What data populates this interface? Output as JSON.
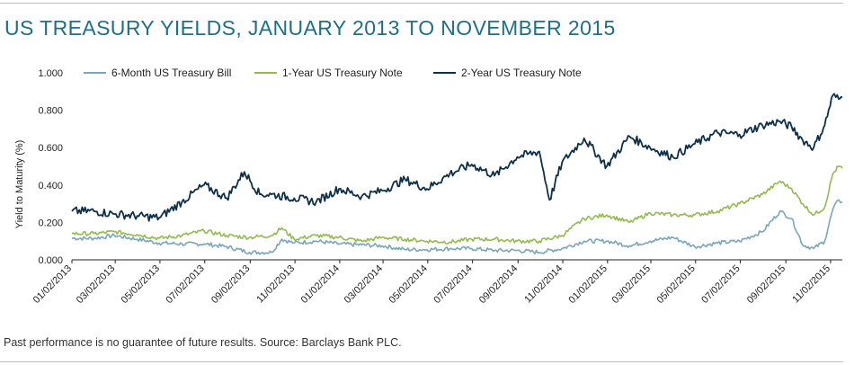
{
  "title": "US TREASURY YIELDS, JANUARY 2013 TO NOVEMBER 2015",
  "footnote": "Past performance is no guarantee of future results. Source: Barclays Bank PLC.",
  "chart_data": {
    "type": "line",
    "ylabel": "Yield to Maturity (%)",
    "xlabel": "",
    "ylim": [
      0,
      1.0
    ],
    "y_ticks": [
      "0.000",
      "0.200",
      "0.400",
      "0.600",
      "0.800",
      "1.000"
    ],
    "x_tick_labels": [
      "01/02/2013",
      "03/02/2013",
      "05/02/2013",
      "07/02/2013",
      "09/02/2013",
      "11/02/2013",
      "01/02/2014",
      "03/02/2014",
      "05/02/2014",
      "07/02/2014",
      "09/02/2014",
      "11/02/2014",
      "01/02/2015",
      "03/02/2015",
      "05/02/2015",
      "07/02/2015",
      "09/02/2015",
      "11/02/2015"
    ],
    "legend_position": "top",
    "grid": false,
    "series": [
      {
        "name": "6-Month US Treasury Bill",
        "color": "#7aa6b8",
        "points": [
          [
            "01/02/2013",
            0.115
          ],
          [
            "02/01/2013",
            0.115
          ],
          [
            "03/01/2013",
            0.13
          ],
          [
            "04/01/2013",
            0.11
          ],
          [
            "05/01/2013",
            0.09
          ],
          [
            "06/01/2013",
            0.085
          ],
          [
            "07/01/2013",
            0.085
          ],
          [
            "08/01/2013",
            0.07
          ],
          [
            "09/01/2013",
            0.04
          ],
          [
            "10/01/2013",
            0.04
          ],
          [
            "10/15/2013",
            0.11
          ],
          [
            "11/01/2013",
            0.09
          ],
          [
            "12/01/2013",
            0.1
          ],
          [
            "01/01/2014",
            0.085
          ],
          [
            "02/01/2014",
            0.08
          ],
          [
            "03/01/2014",
            0.075
          ],
          [
            "04/01/2014",
            0.055
          ],
          [
            "05/01/2014",
            0.055
          ],
          [
            "06/01/2014",
            0.06
          ],
          [
            "07/01/2014",
            0.06
          ],
          [
            "08/01/2014",
            0.05
          ],
          [
            "09/01/2014",
            0.05
          ],
          [
            "10/01/2014",
            0.04
          ],
          [
            "11/01/2014",
            0.06
          ],
          [
            "12/01/2014",
            0.1
          ],
          [
            "01/01/2015",
            0.1
          ],
          [
            "02/01/2015",
            0.075
          ],
          [
            "03/01/2015",
            0.1
          ],
          [
            "04/01/2015",
            0.12
          ],
          [
            "05/01/2015",
            0.07
          ],
          [
            "06/01/2015",
            0.09
          ],
          [
            "07/01/2015",
            0.1
          ],
          [
            "08/01/2015",
            0.15
          ],
          [
            "08/25/2015",
            0.26
          ],
          [
            "09/10/2015",
            0.22
          ],
          [
            "09/25/2015",
            0.08
          ],
          [
            "10/10/2015",
            0.06
          ],
          [
            "10/25/2015",
            0.1
          ],
          [
            "11/05/2015",
            0.27
          ],
          [
            "11/13/2015",
            0.32
          ],
          [
            "11/18/2015",
            0.31
          ]
        ]
      },
      {
        "name": "1-Year US Treasury Note",
        "color": "#93ba4f",
        "points": [
          [
            "01/02/2013",
            0.14
          ],
          [
            "02/01/2013",
            0.14
          ],
          [
            "03/01/2013",
            0.15
          ],
          [
            "04/01/2013",
            0.135
          ],
          [
            "05/01/2013",
            0.115
          ],
          [
            "06/01/2013",
            0.13
          ],
          [
            "07/01/2013",
            0.155
          ],
          [
            "08/01/2013",
            0.13
          ],
          [
            "09/01/2013",
            0.12
          ],
          [
            "10/01/2013",
            0.13
          ],
          [
            "10/15/2013",
            0.17
          ],
          [
            "11/01/2013",
            0.11
          ],
          [
            "12/01/2013",
            0.13
          ],
          [
            "01/01/2014",
            0.12
          ],
          [
            "02/01/2014",
            0.1
          ],
          [
            "03/01/2014",
            0.12
          ],
          [
            "04/01/2014",
            0.11
          ],
          [
            "05/01/2014",
            0.1
          ],
          [
            "06/01/2014",
            0.095
          ],
          [
            "07/01/2014",
            0.11
          ],
          [
            "08/01/2014",
            0.11
          ],
          [
            "09/01/2014",
            0.1
          ],
          [
            "10/01/2014",
            0.1
          ],
          [
            "11/01/2014",
            0.13
          ],
          [
            "12/01/2014",
            0.22
          ],
          [
            "01/01/2015",
            0.24
          ],
          [
            "02/01/2015",
            0.2
          ],
          [
            "03/01/2015",
            0.25
          ],
          [
            "04/01/2015",
            0.24
          ],
          [
            "05/01/2015",
            0.24
          ],
          [
            "06/01/2015",
            0.26
          ],
          [
            "07/01/2015",
            0.3
          ],
          [
            "08/01/2015",
            0.35
          ],
          [
            "08/25/2015",
            0.42
          ],
          [
            "09/10/2015",
            0.38
          ],
          [
            "09/25/2015",
            0.3
          ],
          [
            "10/10/2015",
            0.24
          ],
          [
            "10/25/2015",
            0.28
          ],
          [
            "11/05/2015",
            0.46
          ],
          [
            "11/13/2015",
            0.5
          ],
          [
            "11/18/2015",
            0.49
          ]
        ]
      },
      {
        "name": "2-Year US Treasury Note",
        "color": "#0d3048",
        "points": [
          [
            "01/02/2013",
            0.26
          ],
          [
            "02/01/2013",
            0.26
          ],
          [
            "03/01/2013",
            0.245
          ],
          [
            "04/01/2013",
            0.235
          ],
          [
            "05/01/2013",
            0.225
          ],
          [
            "06/01/2013",
            0.31
          ],
          [
            "07/01/2013",
            0.4
          ],
          [
            "08/01/2013",
            0.33
          ],
          [
            "08/25/2013",
            0.47
          ],
          [
            "09/15/2013",
            0.35
          ],
          [
            "10/01/2013",
            0.35
          ],
          [
            "11/01/2013",
            0.33
          ],
          [
            "12/01/2013",
            0.31
          ],
          [
            "01/01/2014",
            0.38
          ],
          [
            "02/01/2014",
            0.34
          ],
          [
            "03/01/2014",
            0.37
          ],
          [
            "04/01/2014",
            0.43
          ],
          [
            "05/01/2014",
            0.38
          ],
          [
            "06/01/2014",
            0.46
          ],
          [
            "07/01/2014",
            0.51
          ],
          [
            "08/01/2014",
            0.45
          ],
          [
            "09/01/2014",
            0.55
          ],
          [
            "10/01/2014",
            0.58
          ],
          [
            "10/15/2014",
            0.32
          ],
          [
            "11/01/2014",
            0.52
          ],
          [
            "12/01/2014",
            0.65
          ],
          [
            "01/01/2015",
            0.5
          ],
          [
            "02/01/2015",
            0.66
          ],
          [
            "03/01/2015",
            0.6
          ],
          [
            "04/01/2015",
            0.55
          ],
          [
            "05/01/2015",
            0.62
          ],
          [
            "06/01/2015",
            0.68
          ],
          [
            "07/01/2015",
            0.67
          ],
          [
            "08/01/2015",
            0.72
          ],
          [
            "08/25/2015",
            0.74
          ],
          [
            "09/10/2015",
            0.71
          ],
          [
            "09/25/2015",
            0.64
          ],
          [
            "10/10/2015",
            0.6
          ],
          [
            "10/25/2015",
            0.72
          ],
          [
            "11/05/2015",
            0.88
          ],
          [
            "11/13/2015",
            0.86
          ],
          [
            "11/18/2015",
            0.87
          ]
        ]
      }
    ]
  }
}
